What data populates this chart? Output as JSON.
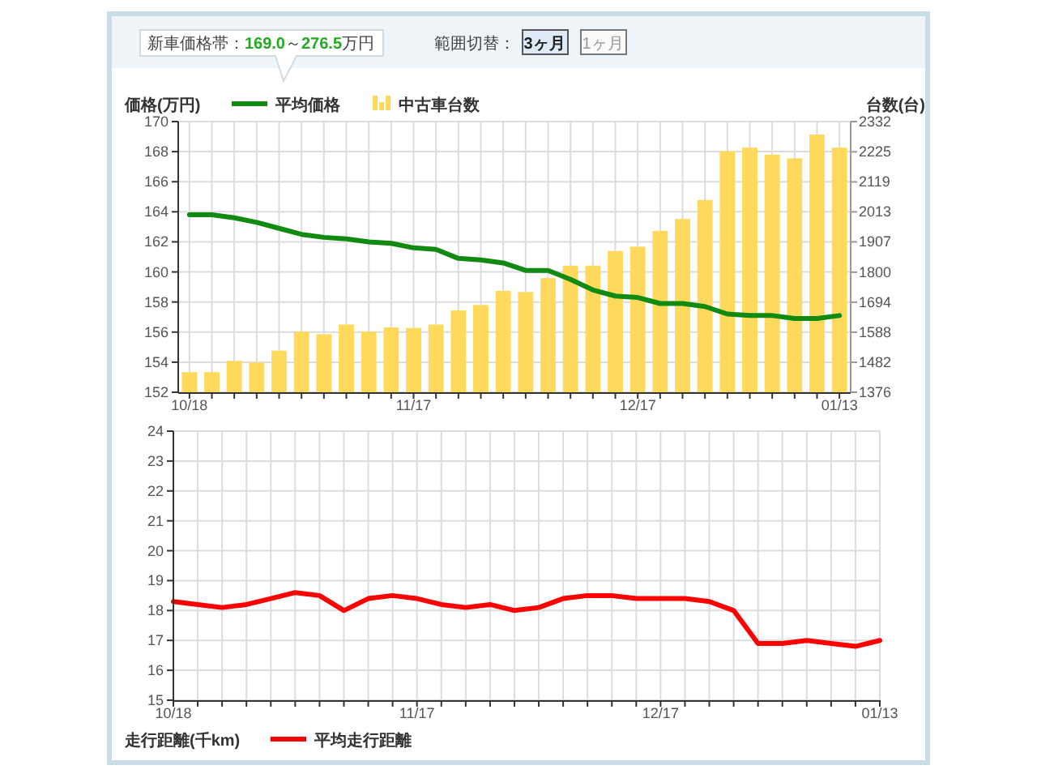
{
  "chart_data": [
    {
      "type": "bar",
      "annotations": [
        "新車価格帯：169.0～276.5万円",
        "範囲切替：",
        "3ヶ月",
        "1ヶ月"
      ],
      "ylabel": "価格(万円)",
      "y2label": "台数(台)",
      "categories": [
        "10/18",
        null,
        null,
        null,
        null,
        null,
        null,
        null,
        null,
        null,
        "11/17",
        null,
        null,
        null,
        null,
        null,
        null,
        null,
        null,
        null,
        "12/17",
        null,
        null,
        null,
        null,
        null,
        null,
        null,
        null,
        "01/13"
      ],
      "series": [
        {
          "name": "平均価格",
          "type": "line",
          "color": "#108a10",
          "values": [
            163.8,
            163.8,
            163.6,
            163.3,
            162.9,
            162.5,
            162.3,
            162.2,
            162.0,
            161.9,
            161.6,
            161.5,
            160.9,
            160.8,
            160.6,
            160.1,
            160.1,
            159.5,
            158.8,
            158.4,
            158.3,
            157.9,
            157.9,
            157.7,
            157.2,
            157.1,
            157.1,
            156.9,
            156.9,
            157.1
          ]
        },
        {
          "name": "中古車台数",
          "type": "bar",
          "axis": "y2",
          "color": "#ffd95c",
          "values": [
            1447,
            1447,
            1487,
            1481,
            1523,
            1590,
            1581,
            1615,
            1590,
            1605,
            1603,
            1615,
            1665,
            1684,
            1734,
            1730,
            1779,
            1823,
            1823,
            1875,
            1890,
            1946,
            1988,
            2055,
            2227,
            2240,
            2215,
            2202,
            2286,
            2240
          ]
        }
      ],
      "ylim": [
        152,
        170
      ],
      "yticks": [
        152,
        154,
        156,
        158,
        160,
        162,
        164,
        166,
        168,
        170
      ],
      "y2lim": [
        1376,
        2332
      ],
      "y2ticks": [
        1376,
        1482,
        1588,
        1694,
        1800,
        1907,
        2013,
        2119,
        2225,
        2332
      ],
      "grid": true,
      "legend": "top"
    },
    {
      "type": "line",
      "ylabel": "走行距離(千km)",
      "categories": [
        "10/18",
        null,
        null,
        null,
        null,
        null,
        null,
        null,
        null,
        null,
        "11/17",
        null,
        null,
        null,
        null,
        null,
        null,
        null,
        null,
        null,
        "12/17",
        null,
        null,
        null,
        null,
        null,
        null,
        null,
        null,
        "01/13"
      ],
      "series": [
        {
          "name": "平均走行距離",
          "color": "#ff0000",
          "values": [
            18.3,
            18.2,
            18.1,
            18.2,
            18.4,
            18.6,
            18.5,
            18.0,
            18.4,
            18.5,
            18.4,
            18.2,
            18.1,
            18.2,
            18.0,
            18.1,
            18.4,
            18.5,
            18.5,
            18.4,
            18.4,
            18.4,
            18.3,
            18.0,
            16.9,
            16.9,
            17.0,
            16.9,
            16.8,
            17.0
          ]
        }
      ],
      "ylim": [
        15,
        24
      ],
      "yticks": [
        15,
        16,
        17,
        18,
        19,
        20,
        21,
        22,
        23,
        24
      ],
      "grid": true,
      "legend": "bottom"
    }
  ]
}
